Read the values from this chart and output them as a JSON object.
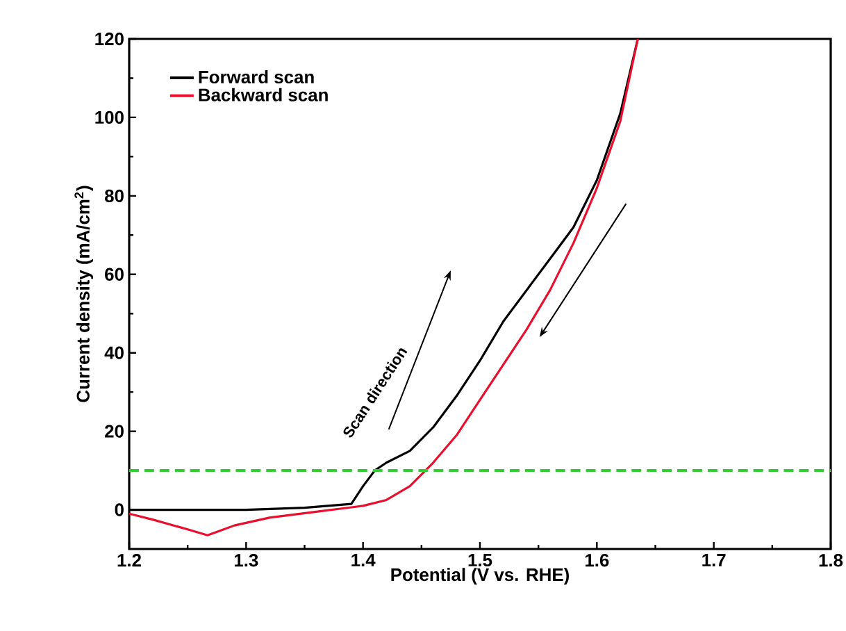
{
  "chart_data": {
    "type": "line",
    "xlabel": "Potential (V vs. RHE)",
    "ylabel": "Current density (mA/cm$^{2}$)",
    "xlim": [
      1.2,
      1.8
    ],
    "ylim": [
      -10,
      120
    ],
    "xticks": [
      1.2,
      1.3,
      1.4,
      1.5,
      1.6,
      1.7,
      1.8
    ],
    "yticks": [
      0,
      20,
      40,
      60,
      80,
      100,
      120
    ],
    "legend": "top left",
    "grid": false,
    "marker": "none",
    "series": [
      {
        "name": "Forward scan",
        "color": "#000000",
        "x": [
          1.2,
          1.25,
          1.3,
          1.35,
          1.39,
          1.4,
          1.41,
          1.42,
          1.44,
          1.46,
          1.48,
          1.5,
          1.52,
          1.54,
          1.56,
          1.58,
          1.6,
          1.62,
          1.635
        ],
        "values": [
          0,
          0,
          0,
          0.5,
          1.5,
          6,
          10,
          12,
          15,
          21,
          29,
          38,
          48,
          56,
          64,
          72,
          84,
          101,
          120
        ]
      },
      {
        "name": "Backward scan",
        "color": "#e8102e",
        "x": [
          1.2,
          1.22,
          1.25,
          1.267,
          1.29,
          1.32,
          1.36,
          1.4,
          1.42,
          1.44,
          1.46,
          1.48,
          1.5,
          1.52,
          1.54,
          1.56,
          1.58,
          1.6,
          1.62,
          1.635
        ],
        "values": [
          -1,
          -2.5,
          -5,
          -6.5,
          -4,
          -2,
          -0.5,
          1,
          2.5,
          6,
          12,
          19,
          28,
          37,
          46,
          56,
          68,
          82,
          99,
          120
        ]
      }
    ],
    "ref_lines": [
      {
        "axis": "y",
        "value": 10,
        "color": "#33cc33",
        "line_style": "dashed"
      }
    ],
    "annotations": [
      "Scan direction"
    ]
  }
}
